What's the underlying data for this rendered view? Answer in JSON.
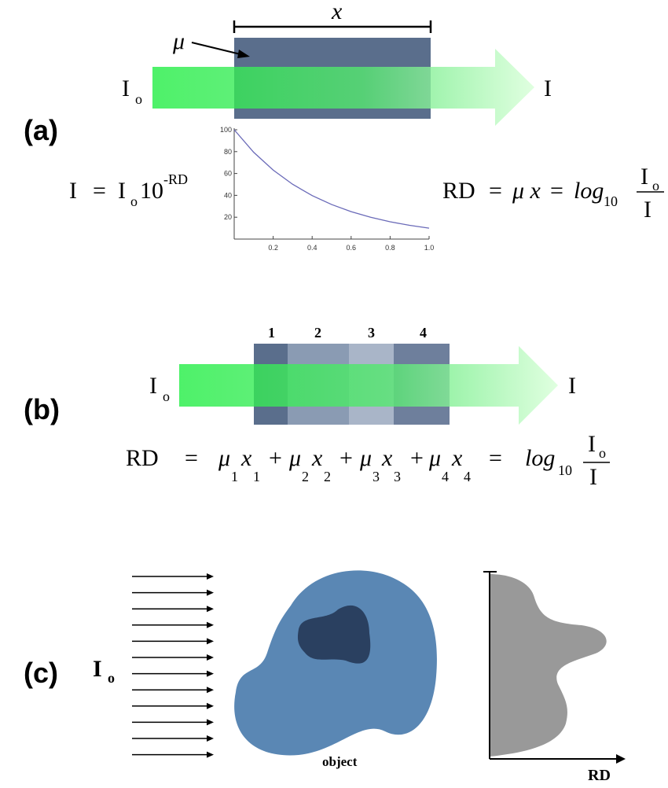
{
  "panel_a": {
    "label": "(a)",
    "length_label": "x",
    "mu_label": "μ",
    "input": {
      "symbol": "I",
      "subscript": "o"
    },
    "output": "I",
    "left_equation": [
      "I",
      "=",
      "I",
      "o",
      "10",
      "-RD"
    ],
    "right_equation": [
      "RD",
      "=",
      "μ x",
      "=",
      "log",
      "10",
      "I",
      "o",
      "I"
    ],
    "plot": {
      "type": "line",
      "x": [
        0,
        0.1,
        0.2,
        0.3,
        0.4,
        0.5,
        0.6,
        0.7,
        0.8,
        0.9,
        1.0
      ],
      "values": [
        100,
        79.4,
        63.1,
        50.1,
        39.8,
        31.6,
        25.1,
        20.0,
        15.8,
        12.6,
        10.0
      ],
      "color": "#6a6ab8",
      "xlim": [
        0,
        1
      ],
      "ylim": [
        0,
        100
      ],
      "xticks": [
        0.2,
        0.4,
        0.6,
        0.8,
        {
          "value": 1,
          "label": "1.0"
        }
      ],
      "yticks": [
        20,
        40,
        60,
        80,
        100
      ]
    }
  },
  "panel_b": {
    "label": "(b)",
    "segments": [
      "1",
      "2",
      "3",
      "4"
    ],
    "input": {
      "symbol": "I",
      "subscript": "o"
    },
    "output": "I",
    "equation": [
      "RD",
      "=",
      "μ",
      "1",
      "x",
      "1",
      "+",
      "μ",
      "2",
      "x",
      "2",
      "+",
      "μ",
      "3",
      "x",
      "3",
      "+",
      "μ",
      "4",
      "x",
      "4",
      "=",
      "log",
      "10",
      "I",
      "o",
      "I"
    ]
  },
  "panel_c": {
    "label": "(c)",
    "input": {
      "symbol": "I",
      "subscript": "o"
    },
    "object_label": "object",
    "axis_label": "RD"
  }
}
